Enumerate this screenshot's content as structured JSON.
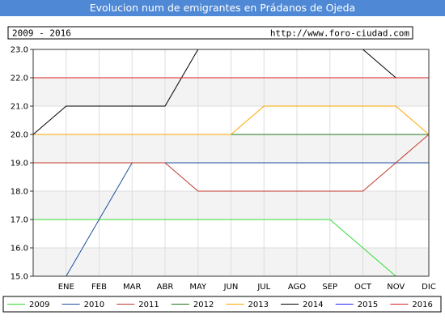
{
  "header": {
    "title": "Evolucion num de emigrantes en Prádanos de Ojeda"
  },
  "info": {
    "period": "2009 - 2016",
    "url": "http://www.foro-ciudad.com"
  },
  "colors": {
    "title_bg": "#4f88d4",
    "plot_bg": "#ffffff",
    "band": "#f3f3f3",
    "grid": "#dddddd"
  },
  "chart_data": {
    "type": "line",
    "title": "Evolucion num de emigrantes en Prádanos de Ojeda",
    "xlabel": "",
    "ylabel": "",
    "x": [
      "",
      "ENE",
      "FEB",
      "MAR",
      "ABR",
      "MAY",
      "JUN",
      "JUL",
      "AGO",
      "SEP",
      "OCT",
      "NOV",
      "DIC"
    ],
    "ylim": [
      15,
      23
    ],
    "yticks": [
      "15.0",
      "16.0",
      "17.0",
      "18.0",
      "19.0",
      "20.0",
      "21.0",
      "22.0",
      "23.0"
    ],
    "grid": true,
    "legend_position": "bottom",
    "series": [
      {
        "name": "2009",
        "color": "#33dd33",
        "values": [
          17,
          17,
          17,
          17,
          17,
          17,
          17,
          17,
          17,
          17,
          16,
          15,
          null
        ]
      },
      {
        "name": "2010",
        "color": "#1f4fa0",
        "values": [
          null,
          15,
          17,
          19,
          19,
          19,
          19,
          19,
          19,
          19,
          19,
          19,
          19
        ]
      },
      {
        "name": "2011",
        "color": "#c0392b",
        "values": [
          19,
          19,
          19,
          19,
          19,
          18,
          18,
          18,
          18,
          18,
          18,
          19,
          20
        ]
      },
      {
        "name": "2012",
        "color": "#1a7a1a",
        "values": [
          20,
          20,
          20,
          20,
          20,
          20,
          20,
          20,
          20,
          20,
          20,
          20,
          20
        ]
      },
      {
        "name": "2013",
        "color": "#ffa500",
        "values": [
          20,
          20,
          20,
          20,
          20,
          20,
          20,
          21,
          21,
          21,
          21,
          21,
          20
        ]
      },
      {
        "name": "2014",
        "color": "#000000",
        "values": [
          20,
          21,
          21,
          21,
          21,
          23,
          23,
          23,
          23,
          23,
          23,
          22,
          null
        ]
      },
      {
        "name": "2015",
        "color": "#2222ff",
        "values": [
          null,
          null,
          null,
          null,
          null,
          null,
          null,
          null,
          null,
          null,
          null,
          22,
          22
        ]
      },
      {
        "name": "2016",
        "color": "#dd2222",
        "values": [
          22,
          22,
          22,
          22,
          22,
          22,
          22,
          22,
          22,
          22,
          22,
          22,
          22
        ]
      }
    ]
  }
}
